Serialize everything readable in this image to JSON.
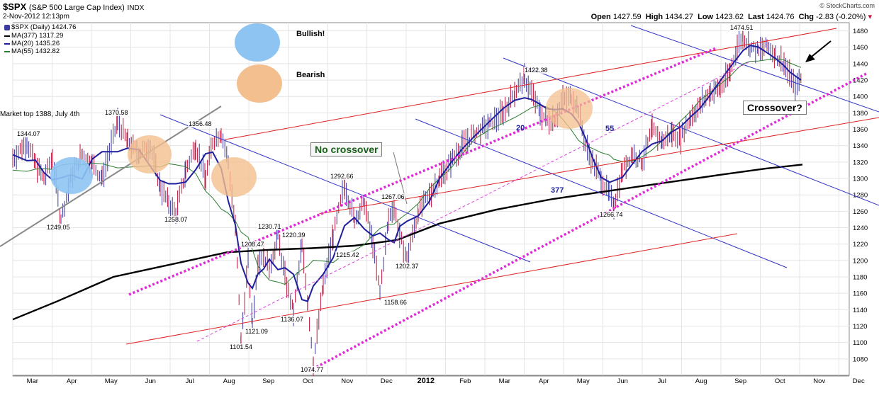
{
  "header": {
    "symbol": "$SPX",
    "name": "(S&P 500 Large Cap Index)",
    "exchange": "INDX",
    "datetime": "2-Nov-2012 12:13pm",
    "source": "© StockCharts.com",
    "open_label": "Open",
    "open": "1427.59",
    "high_label": "High",
    "high": "1434.27",
    "low_label": "Low",
    "low": "1423.62",
    "last_label": "Last",
    "last": "1424.76",
    "chg_label": "Chg",
    "chg": "-2.83 (-0.20%)"
  },
  "legend": [
    {
      "label": "$SPX (Daily) 1424.76",
      "color": "#3a3aa0"
    },
    {
      "label": "MA(377) 1317.29",
      "color": "#000000"
    },
    {
      "label": "MA(20) 1435.26",
      "color": "#1f1f9e"
    },
    {
      "label": "MA(55) 1432.82",
      "color": "#2e7d32"
    }
  ],
  "key": {
    "bullish_label": "Bullish!",
    "bullish_color": "#8ec4f2",
    "bearish_label": "Bearish",
    "bearish_color": "#f4bf8e"
  },
  "annotations": {
    "market_top": "Market top 1388, July 4th",
    "no_crossover": "No crossover",
    "crossover": "Crossover?",
    "ma20_tag": "20",
    "ma55_tag": "55",
    "ma377_tag": "377"
  },
  "chart_data": {
    "type": "line",
    "title": "$SPX (S&P 500 Large Cap Index) INDX",
    "ylim": [
      1060,
      1490
    ],
    "y_ticks": [
      1080,
      1100,
      1120,
      1140,
      1160,
      1180,
      1200,
      1220,
      1240,
      1260,
      1280,
      1300,
      1320,
      1340,
      1360,
      1380,
      1400,
      1420,
      1440,
      1460,
      1480
    ],
    "x_ticks": [
      "Mar",
      "Apr",
      "May",
      "Jun",
      "Jul",
      "Aug",
      "Sep",
      "Oct",
      "Nov",
      "Dec",
      "2012",
      "Feb",
      "Mar",
      "Apr",
      "May",
      "Jun",
      "Jul",
      "Aug",
      "Sep",
      "Oct",
      "Nov",
      "Dec"
    ],
    "price_anchors": [
      {
        "label": "1344.07",
        "value": 1344.07
      },
      {
        "label": "1249.05",
        "value": 1249.05
      },
      {
        "label": "1370.58",
        "value": 1370.58
      },
      {
        "label": "1258.07",
        "value": 1258.07
      },
      {
        "label": "1356.48",
        "value": 1356.48
      },
      {
        "label": "1101.54",
        "value": 1101.54
      },
      {
        "label": "1121.09",
        "value": 1121.09
      },
      {
        "label": "1208.47",
        "value": 1208.47
      },
      {
        "label": "1230.71",
        "value": 1230.71
      },
      {
        "label": "1136.07",
        "value": 1136.07
      },
      {
        "label": "1220.39",
        "value": 1220.39
      },
      {
        "label": "1074.77",
        "value": 1074.77
      },
      {
        "label": "1292.66",
        "value": 1292.66
      },
      {
        "label": "1215.42",
        "value": 1215.42
      },
      {
        "label": "1267.06",
        "value": 1267.06
      },
      {
        "label": "1158.66",
        "value": 1158.66
      },
      {
        "label": "1202.37",
        "value": 1202.37
      },
      {
        "label": "1422.38",
        "value": 1422.38
      },
      {
        "label": "1266.74",
        "value": 1266.74
      },
      {
        "label": "1474.51",
        "value": 1474.51
      }
    ],
    "series": [
      {
        "name": "$SPX (Daily)",
        "color": "#c0143c"
      },
      {
        "name": "MA(377)",
        "color": "#000000"
      },
      {
        "name": "MA(20)",
        "color": "#1f1f9e"
      },
      {
        "name": "MA(55)",
        "color": "#2e7d32"
      }
    ],
    "grid": true,
    "legend_position": "top-left"
  }
}
